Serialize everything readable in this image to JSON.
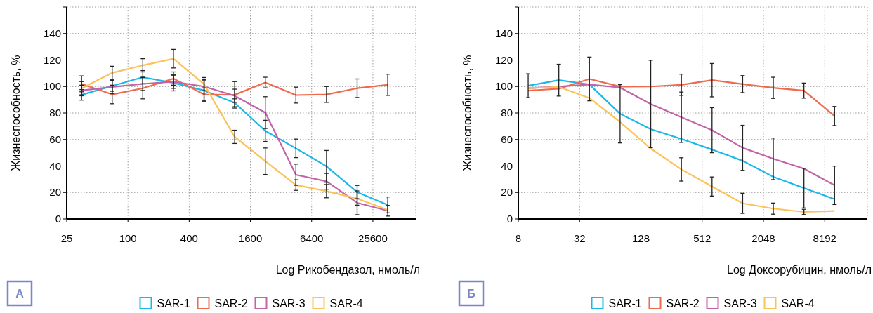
{
  "chart_data": [
    {
      "type": "line",
      "xlabel": "Log Рикобендазол, нмоль/л",
      "ylabel": "Жизнеспособность, %",
      "annotations": [
        "А"
      ],
      "log": "x",
      "grid": true,
      "legend": "bottom",
      "xlim": [
        25,
        67600
      ],
      "xticks": [
        25,
        100,
        400,
        1600,
        6400,
        25600
      ],
      "ylim": [
        0,
        160
      ],
      "yticks": [
        0,
        20,
        40,
        60,
        80,
        100,
        120,
        140,
        {
          "value": 160,
          "label": null
        }
      ],
      "x": [
        35,
        70,
        140,
        280,
        560,
        1120,
        2240,
        4480,
        8960,
        17920,
        35840
      ],
      "series": [
        {
          "name": "SAR-1",
          "color": "#1ab8ea",
          "values": [
            93.7,
            100.4,
            107,
            102.7,
            97,
            87.7,
            66.5,
            53.3,
            39.7,
            20.3,
            10.6
          ],
          "errors": [
            4,
            4,
            5,
            6,
            8,
            3,
            8,
            7,
            12,
            5,
            6
          ]
        },
        {
          "name": "SAR-2",
          "color": "#ef6a4c",
          "values": [
            102,
            94,
            98.7,
            106,
            94,
            93.7,
            103,
            93.5,
            94,
            98.7,
            101.3
          ],
          "errors": [
            6,
            7,
            8,
            5,
            5,
            10,
            4,
            6,
            6,
            7,
            8
          ]
        },
        {
          "name": "SAR-3",
          "color": "#c262a8",
          "values": [
            97,
            99.7,
            102,
            103.6,
            100,
            93,
            80.3,
            33.4,
            28.4,
            12.2,
            6.2
          ],
          "errors": [
            4,
            5,
            5,
            5,
            5,
            5,
            12,
            8,
            6,
            9,
            4
          ]
        },
        {
          "name": "SAR-4",
          "color": "#fcc25a",
          "values": [
            98.7,
            110.3,
            116,
            121,
            101.8,
            62,
            43.6,
            25.6,
            21,
            15.4,
            6.9
          ],
          "errors": [
            5,
            5,
            5,
            7,
            5,
            5,
            10,
            4,
            5,
            5,
            null
          ]
        }
      ]
    },
    {
      "type": "line",
      "xlabel": "Log Доксорубицин, нмоль/л",
      "ylabel": "Жизнеспособность, %",
      "annotations": [
        "Б"
      ],
      "log": "x",
      "grid": true,
      "legend": "bottom",
      "xlim": [
        8,
        21500
      ],
      "xticks": [
        8,
        32,
        128,
        512,
        2048,
        8192
      ],
      "ylim": [
        0,
        160
      ],
      "yticks": [
        0,
        20,
        40,
        60,
        80,
        100,
        120,
        140,
        {
          "value": 160,
          "label": null
        }
      ],
      "x": [
        10,
        20,
        40,
        80,
        160,
        320,
        640,
        1280,
        2560,
        5120,
        10240
      ],
      "series": [
        {
          "name": "SAR-1",
          "color": "#1ab8ea",
          "values": [
            100.6,
            104.8,
            101.5,
            79.4,
            67.8,
            60.4,
            52.4,
            43.9,
            31.8,
            23.3,
            15
          ],
          "errors": [
            9,
            12,
            null,
            22,
            null,
            null,
            null,
            null,
            null,
            15,
            null
          ]
        },
        {
          "name": "SAR-2",
          "color": "#ef6a4c",
          "values": [
            96.9,
            98.3,
            105.7,
            99.9,
            100,
            101.3,
            104.8,
            101.8,
            99,
            96.9,
            77.7
          ],
          "errors": [
            null,
            null,
            16.5,
            null,
            null,
            8,
            12.6,
            6.4,
            8,
            5.7,
            7.2
          ]
        },
        {
          "name": "SAR-3",
          "color": "#c262a8",
          "values": [
            98.7,
            100,
            101.5,
            99.2,
            86.8,
            76.8,
            67,
            53.7,
            45.4,
            38,
            25.4
          ],
          "errors": [
            null,
            null,
            null,
            null,
            33,
            19,
            17,
            17,
            15.7,
            null,
            14.5
          ]
        },
        {
          "name": "SAR-4",
          "color": "#fcc25a",
          "values": [
            98.7,
            99.7,
            91.3,
            73.2,
            53.1,
            37.4,
            24.5,
            11.8,
            7.8,
            5.3,
            6
          ],
          "errors": [
            null,
            null,
            null,
            null,
            null,
            8.8,
            7.2,
            7.6,
            4.2,
            2,
            null
          ]
        }
      ]
    }
  ]
}
